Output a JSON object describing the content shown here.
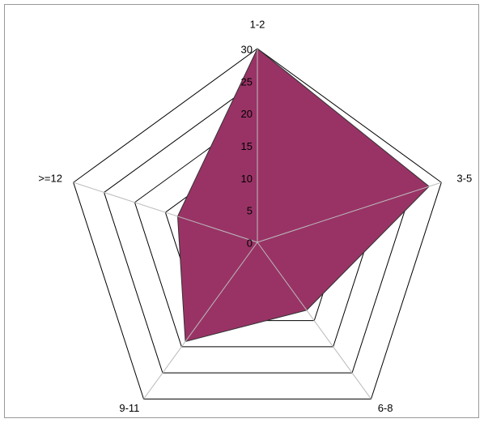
{
  "chart_data": {
    "type": "radar",
    "categories": [
      "1-2",
      "3-5",
      "6-8",
      "9-11",
      ">=12"
    ],
    "values": [
      30,
      28,
      13,
      19,
      13
    ],
    "color": "#993366",
    "rlim": [
      0,
      30
    ],
    "rticks": [
      0,
      5,
      10,
      15,
      20,
      25,
      30
    ]
  }
}
